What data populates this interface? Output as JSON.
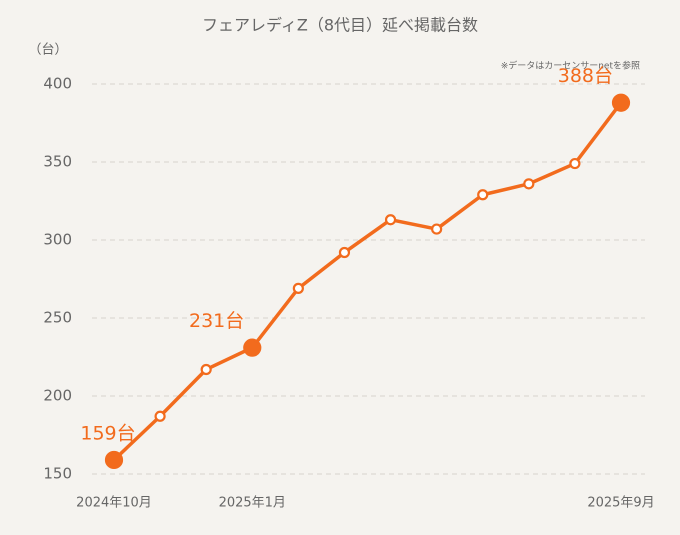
{
  "chart_data": {
    "type": "line",
    "title": "フェアレディZ（8代目）延べ掲載台数",
    "y_label": "（台）",
    "note": "※データはカーセンサーnetを参照",
    "categories": [
      "2024年10月",
      null,
      null,
      "2025年1月",
      null,
      null,
      null,
      null,
      null,
      null,
      null,
      "2025年9月"
    ],
    "series": [
      {
        "name": "延べ掲載台数",
        "color": "#f26b1d",
        "values": [
          159,
          187,
          217,
          231,
          269,
          292,
          313,
          307,
          329,
          336,
          349,
          388
        ],
        "value_labels": [
          "159台",
          null,
          null,
          "231台",
          null,
          null,
          null,
          null,
          null,
          null,
          null,
          "388台"
        ]
      }
    ],
    "ylim": [
      150,
      400
    ],
    "yticks": [
      150,
      200,
      250,
      300,
      350,
      400
    ],
    "grid": true
  }
}
